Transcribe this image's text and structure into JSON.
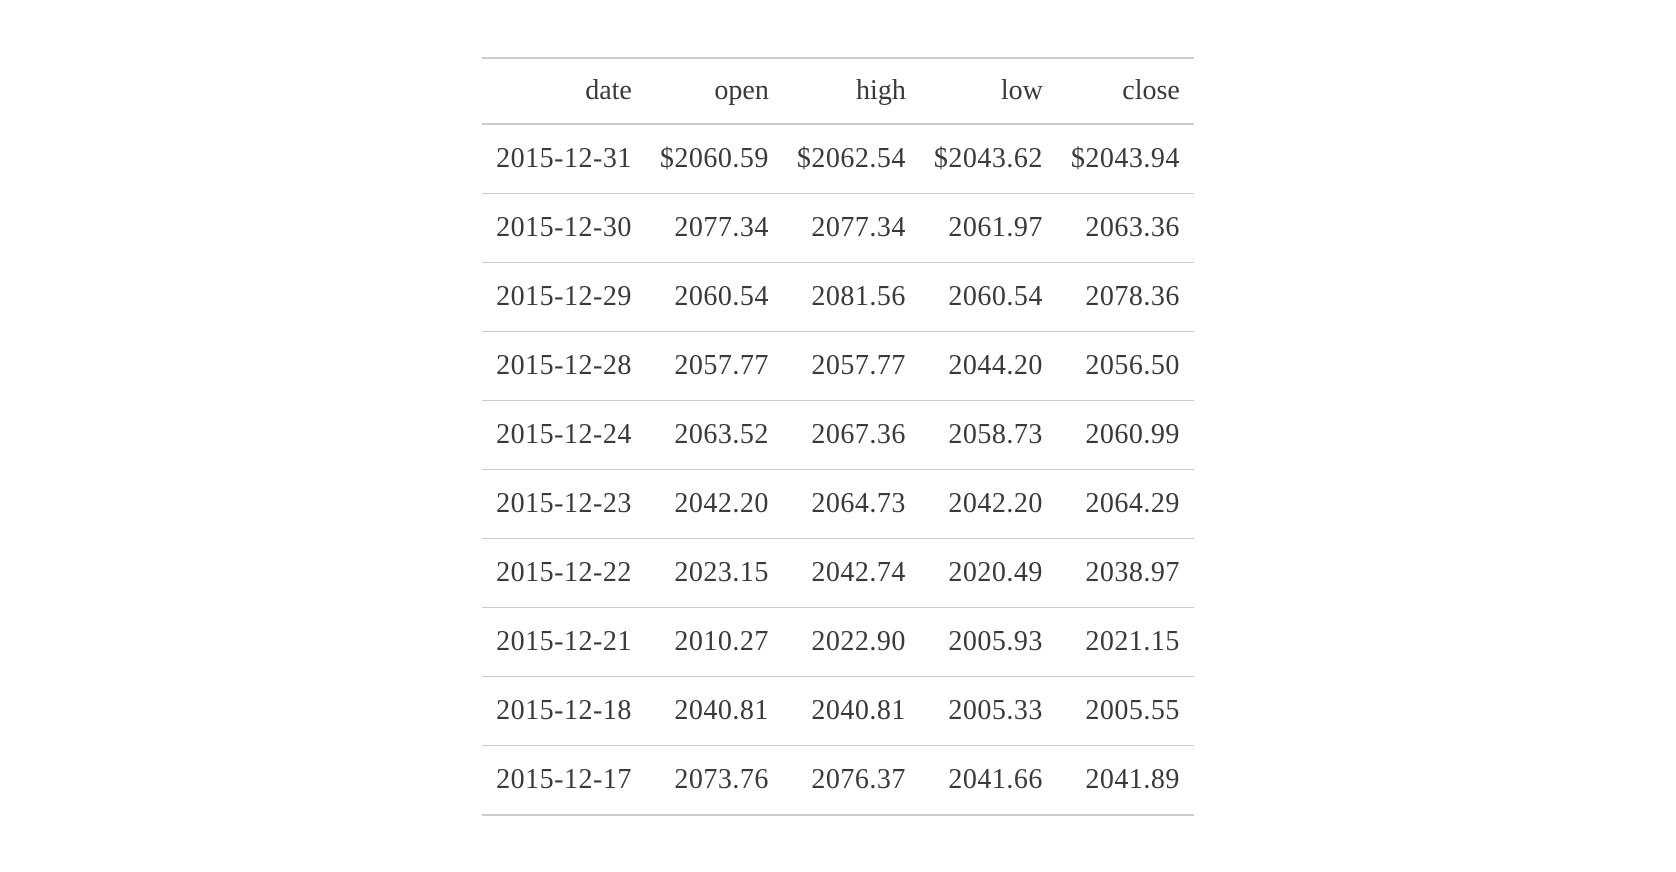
{
  "table": {
    "type": "table",
    "columns": [
      "date",
      "open",
      "high",
      "low",
      "close"
    ],
    "column_align": [
      "right",
      "right",
      "right",
      "right",
      "right"
    ],
    "header_fontsize": 28,
    "cell_fontsize": 28,
    "text_color": "#3a3a3a",
    "border_color": "#cccccc",
    "background_color": "#ffffff",
    "rows": [
      [
        "2015-12-31",
        "$2060.59",
        "$2062.54",
        "$2043.62",
        "$2043.94"
      ],
      [
        "2015-12-30",
        "2077.34",
        "2077.34",
        "2061.97",
        "2063.36"
      ],
      [
        "2015-12-29",
        "2060.54",
        "2081.56",
        "2060.54",
        "2078.36"
      ],
      [
        "2015-12-28",
        "2057.77",
        "2057.77",
        "2044.20",
        "2056.50"
      ],
      [
        "2015-12-24",
        "2063.52",
        "2067.36",
        "2058.73",
        "2060.99"
      ],
      [
        "2015-12-23",
        "2042.20",
        "2064.73",
        "2042.20",
        "2064.29"
      ],
      [
        "2015-12-22",
        "2023.15",
        "2042.74",
        "2020.49",
        "2038.97"
      ],
      [
        "2015-12-21",
        "2010.27",
        "2022.90",
        "2005.93",
        "2021.15"
      ],
      [
        "2015-12-18",
        "2040.81",
        "2040.81",
        "2005.33",
        "2005.55"
      ],
      [
        "2015-12-17",
        "2073.76",
        "2076.37",
        "2041.66",
        "2041.89"
      ]
    ]
  }
}
